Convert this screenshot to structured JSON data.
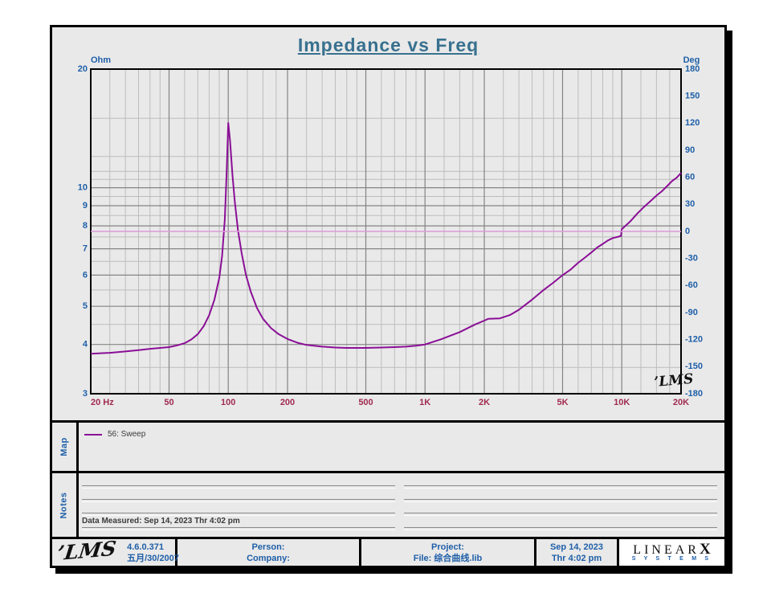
{
  "title": "Impedance vs Freq",
  "chart_data": {
    "type": "line",
    "title": "Impedance vs Freq",
    "x_axis": {
      "scale": "log",
      "min": 20,
      "max": 20000,
      "major_ticks": [
        {
          "f": 20,
          "label": "20  Hz"
        },
        {
          "f": 50,
          "label": "50"
        },
        {
          "f": 100,
          "label": "100"
        },
        {
          "f": 200,
          "label": "200"
        },
        {
          "f": 500,
          "label": "500"
        },
        {
          "f": 1000,
          "label": "1K"
        },
        {
          "f": 2000,
          "label": "2K"
        },
        {
          "f": 5000,
          "label": "5K"
        },
        {
          "f": 10000,
          "label": "10K"
        },
        {
          "f": 20000,
          "label": "20K"
        }
      ],
      "minor_gridlines": [
        25,
        30,
        35,
        40,
        45,
        60,
        70,
        80,
        90,
        125,
        150,
        175,
        250,
        300,
        350,
        400,
        450,
        600,
        700,
        800,
        900,
        1250,
        1500,
        1750,
        2500,
        3000,
        3500,
        4000,
        4500,
        6000,
        7000,
        8000,
        9000,
        12500,
        15000,
        17500
      ]
    },
    "y_left": {
      "unit": "Ohm",
      "scale": "log",
      "min": 3,
      "max": 20,
      "major_ticks": [
        {
          "v": 20,
          "label": "20"
        },
        {
          "v": 10,
          "label": "10"
        },
        {
          "v": 9,
          "label": "9"
        },
        {
          "v": 8,
          "label": "8"
        },
        {
          "v": 7,
          "label": "7"
        },
        {
          "v": 6,
          "label": "6"
        },
        {
          "v": 5,
          "label": "5"
        },
        {
          "v": 4,
          "label": "4"
        },
        {
          "v": 3,
          "label": "3"
        }
      ],
      "minor_gridlines": [
        3.5,
        4.5,
        5.5,
        6.5,
        7.5,
        8.5,
        9.5,
        10.5,
        11,
        12,
        15
      ]
    },
    "y_right": {
      "unit": "Deg",
      "min": -180,
      "max": 180,
      "ticks": [
        {
          "v": 180,
          "label": "180"
        },
        {
          "v": 150,
          "label": "150"
        },
        {
          "v": 120,
          "label": "120"
        },
        {
          "v": 90,
          "label": "90"
        },
        {
          "v": 60,
          "label": "60"
        },
        {
          "v": 30,
          "label": "30"
        },
        {
          "v": 0,
          "label": "0"
        },
        {
          "v": -30,
          "label": "-30"
        },
        {
          "v": -60,
          "label": "-60"
        },
        {
          "v": -90,
          "label": "-90"
        },
        {
          "v": -120,
          "label": "-120"
        },
        {
          "v": -150,
          "label": "-150"
        },
        {
          "v": -180,
          "label": "-180"
        }
      ]
    },
    "grid": {
      "minor_color": "#bdbdbd",
      "major_color": "#848484"
    },
    "colors": {
      "x_tick": "#a02b50",
      "y_tick": "#1e5fa8"
    },
    "series": [
      {
        "id": "impedance-curve",
        "name": "56: Sweep (impedance)",
        "axis": "left",
        "color": "#8a0f96",
        "width": 2,
        "points": [
          [
            20,
            3.79
          ],
          [
            25,
            3.81
          ],
          [
            30,
            3.84
          ],
          [
            35,
            3.87
          ],
          [
            40,
            3.9
          ],
          [
            45,
            3.92
          ],
          [
            50,
            3.94
          ],
          [
            55,
            3.98
          ],
          [
            60,
            4.03
          ],
          [
            65,
            4.12
          ],
          [
            70,
            4.25
          ],
          [
            75,
            4.45
          ],
          [
            80,
            4.75
          ],
          [
            85,
            5.2
          ],
          [
            90,
            5.9
          ],
          [
            93,
            6.7
          ],
          [
            96,
            8.3
          ],
          [
            98,
            10.8
          ],
          [
            100,
            14.6
          ],
          [
            102,
            13.2
          ],
          [
            105,
            10.8
          ],
          [
            108,
            9.2
          ],
          [
            112,
            7.8
          ],
          [
            117,
            6.8
          ],
          [
            123,
            6.0
          ],
          [
            130,
            5.45
          ],
          [
            140,
            4.95
          ],
          [
            150,
            4.65
          ],
          [
            165,
            4.4
          ],
          [
            180,
            4.25
          ],
          [
            200,
            4.13
          ],
          [
            225,
            4.04
          ],
          [
            250,
            3.99
          ],
          [
            300,
            3.95
          ],
          [
            350,
            3.93
          ],
          [
            400,
            3.92
          ],
          [
            500,
            3.92
          ],
          [
            600,
            3.93
          ],
          [
            700,
            3.94
          ],
          [
            800,
            3.95
          ],
          [
            900,
            3.97
          ],
          [
            1000,
            4.0
          ],
          [
            1200,
            4.12
          ],
          [
            1500,
            4.3
          ],
          [
            1800,
            4.5
          ],
          [
            2000,
            4.6
          ],
          [
            2100,
            4.65
          ],
          [
            2400,
            4.66
          ],
          [
            2700,
            4.75
          ],
          [
            3000,
            4.9
          ],
          [
            3500,
            5.2
          ],
          [
            4000,
            5.5
          ],
          [
            4500,
            5.75
          ],
          [
            5000,
            6.0
          ],
          [
            5500,
            6.2
          ],
          [
            6000,
            6.45
          ],
          [
            6500,
            6.65
          ],
          [
            7000,
            6.85
          ],
          [
            7500,
            7.05
          ],
          [
            8000,
            7.2
          ],
          [
            8500,
            7.35
          ],
          [
            9000,
            7.45
          ],
          [
            9500,
            7.5
          ],
          [
            9900,
            7.55
          ],
          [
            10000,
            7.85
          ],
          [
            11000,
            8.2
          ],
          [
            12000,
            8.6
          ],
          [
            13000,
            8.95
          ],
          [
            14000,
            9.25
          ],
          [
            15000,
            9.55
          ],
          [
            16000,
            9.8
          ],
          [
            17000,
            10.1
          ],
          [
            18000,
            10.4
          ],
          [
            19000,
            10.6
          ],
          [
            20000,
            10.9
          ]
        ]
      },
      {
        "id": "phase-curve",
        "name": "56: Sweep (phase)",
        "axis": "right",
        "color": "#dd9ad8",
        "width": 1.5,
        "points": [
          [
            20,
            0
          ],
          [
            20000,
            0
          ]
        ]
      }
    ],
    "watermark": "’LMS"
  },
  "map": {
    "label": "Map",
    "legend": "56: Sweep",
    "legend_color": "#8a0f96"
  },
  "notes": {
    "label": "Notes",
    "data_measured": "Data Measured: Sep 14, 2023  Thr  4:02 pm"
  },
  "footer": {
    "lms_logo": "’LMS",
    "version": "4.6.0.371",
    "version_date": "五月/30/2007",
    "person_label": "Person:",
    "company_label": "Company:",
    "project_label": "Project:",
    "file_label": "File: 综合曲线.lib",
    "date": "Sep 14, 2023",
    "time": "Thr  4:02 pm",
    "brand": {
      "name": "LINEAR",
      "x": "X",
      "sub": "S Y S T E M S"
    }
  }
}
